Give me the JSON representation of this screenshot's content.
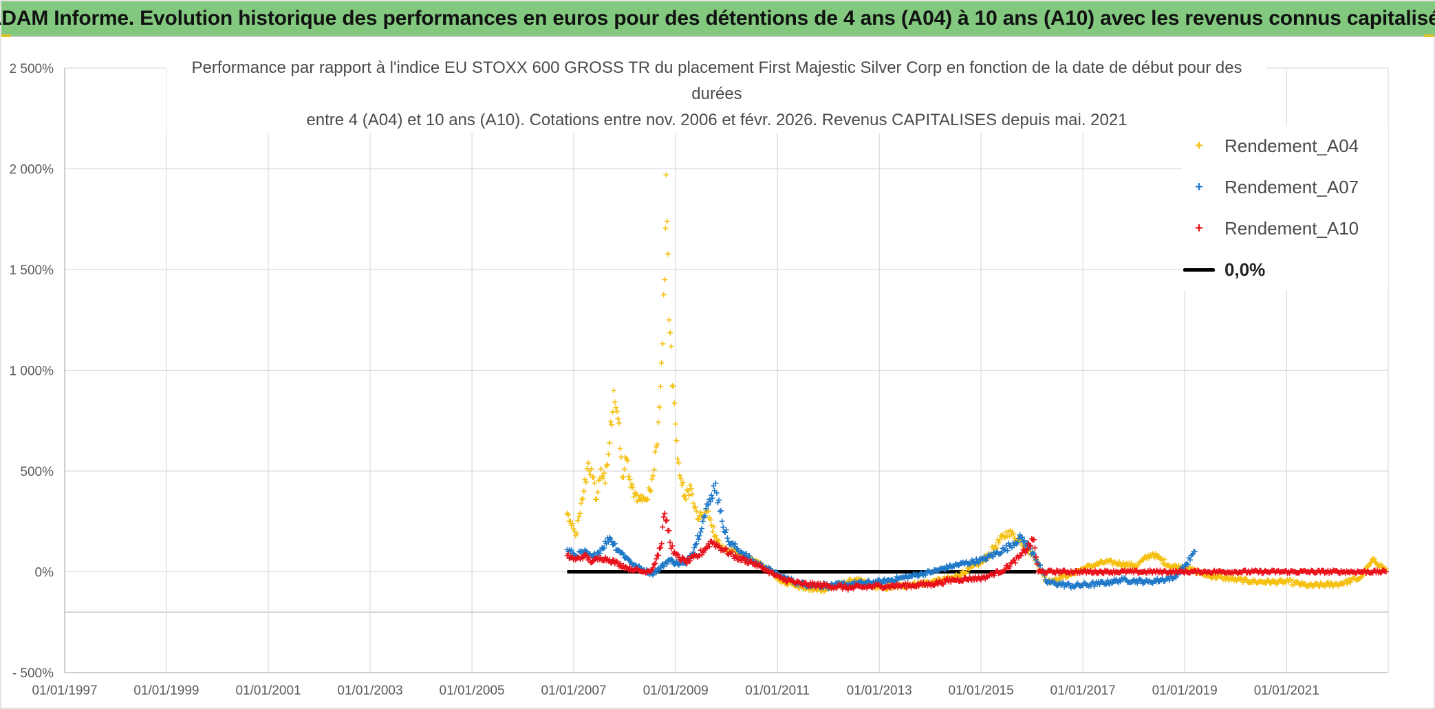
{
  "header": {
    "banner_title": "ADAM Informe. Evolution historique des performances en euros pour des détentions de 4 ans (A04) à 10 ans (A10) avec les revenus connus capitalisés"
  },
  "colors": {
    "banner_bg": "#82c97f",
    "A04": "#f5c010",
    "A07": "#1f78c8",
    "A10": "#e8101a",
    "zero": "#000000"
  },
  "chart_data": {
    "type": "scatter",
    "title_lines": [
      "Performance par rapport à l'indice EU STOXX 600 GROSS TR  du placement First Majestic Silver Corp en fonction de la date de début pour des",
      "durées",
      "entre 4 (A04) et 10 ans (A10). Cotations entre nov. 2006 et févr. 2026. Revenus CAPITALISES depuis mai. 2021"
    ],
    "xlabel": "",
    "ylabel": "",
    "xlim": [
      "01/01/1997",
      "31/12/2022"
    ],
    "ylim": [
      -500,
      2500
    ],
    "x_ticks": [
      "01/01/1997",
      "01/01/1999",
      "01/01/2001",
      "01/01/2003",
      "01/01/2005",
      "01/01/2007",
      "01/01/2009",
      "01/01/2011",
      "01/01/2013",
      "01/01/2015",
      "01/01/2017",
      "01/01/2019",
      "01/01/2021"
    ],
    "y_ticks": [
      {
        "value": 2500,
        "label": "2 500%"
      },
      {
        "value": 2000,
        "label": "2 000%"
      },
      {
        "value": 1500,
        "label": "1 500%"
      },
      {
        "value": 1000,
        "label": "1 000%"
      },
      {
        "value": 500,
        "label": "500%"
      },
      {
        "value": 0,
        "label": "0%"
      },
      {
        "value": -500,
        "label": "- 500%"
      }
    ],
    "grid": true,
    "legend_position": "right",
    "legend": [
      {
        "key": "A04",
        "label": "Rendement_A04",
        "marker": "+"
      },
      {
        "key": "A07",
        "label": "Rendement_A07",
        "marker": "+"
      },
      {
        "key": "A10",
        "label": "Rendement_A10",
        "marker": "+"
      },
      {
        "key": "zero",
        "label": "0,0%",
        "marker": "line"
      }
    ],
    "reference_line": {
      "name": "0,0%",
      "y": 0,
      "x_start": "2006-11-15",
      "x_end": "2016-02-01"
    },
    "series": [
      {
        "name": "Rendement_A04",
        "key": "A04",
        "points": [
          [
            "2006-11-15",
            290
          ],
          [
            "2006-12-15",
            230
          ],
          [
            "2007-01-15",
            180
          ],
          [
            "2007-02-15",
            290
          ],
          [
            "2007-03-15",
            400
          ],
          [
            "2007-04-15",
            540
          ],
          [
            "2007-05-15",
            470
          ],
          [
            "2007-06-15",
            360
          ],
          [
            "2007-07-15",
            510
          ],
          [
            "2007-08-15",
            440
          ],
          [
            "2007-09-15",
            640
          ],
          [
            "2007-10-15",
            900
          ],
          [
            "2007-11-15",
            760
          ],
          [
            "2007-12-15",
            470
          ],
          [
            "2008-01-15",
            560
          ],
          [
            "2008-02-15",
            420
          ],
          [
            "2008-03-15",
            390
          ],
          [
            "2008-04-15",
            360
          ],
          [
            "2008-05-15",
            370
          ],
          [
            "2008-06-15",
            360
          ],
          [
            "2008-07-15",
            460
          ],
          [
            "2008-08-15",
            620
          ],
          [
            "2008-09-15",
            920
          ],
          [
            "2008-10-15",
            1450
          ],
          [
            "2008-10-25",
            1970
          ],
          [
            "2008-11-15",
            1250
          ],
          [
            "2008-12-15",
            920
          ],
          [
            "2009-01-15",
            560
          ],
          [
            "2009-02-15",
            430
          ],
          [
            "2009-03-15",
            360
          ],
          [
            "2009-04-15",
            430
          ],
          [
            "2009-05-15",
            320
          ],
          [
            "2009-06-15",
            260
          ],
          [
            "2009-07-15",
            280
          ],
          [
            "2009-08-15",
            300
          ],
          [
            "2009-09-15",
            230
          ],
          [
            "2009-10-15",
            180
          ],
          [
            "2009-11-15",
            130
          ],
          [
            "2009-12-15",
            110
          ],
          [
            "2010-02-15",
            100
          ],
          [
            "2010-04-15",
            90
          ],
          [
            "2010-06-15",
            60
          ],
          [
            "2010-08-15",
            50
          ],
          [
            "2010-10-15",
            20
          ],
          [
            "2011-01-15",
            -40
          ],
          [
            "2011-04-15",
            -60
          ],
          [
            "2011-07-15",
            -80
          ],
          [
            "2011-10-15",
            -90
          ],
          [
            "2012-01-15",
            -80
          ],
          [
            "2012-04-15",
            -60
          ],
          [
            "2012-07-15",
            -40
          ],
          [
            "2012-10-15",
            -60
          ],
          [
            "2013-01-15",
            -80
          ],
          [
            "2013-06-15",
            -70
          ],
          [
            "2014-01-15",
            -50
          ],
          [
            "2014-06-15",
            -30
          ],
          [
            "2015-01-15",
            50
          ],
          [
            "2015-04-15",
            130
          ],
          [
            "2015-07-15",
            200
          ],
          [
            "2015-10-15",
            150
          ],
          [
            "2016-01-15",
            80
          ],
          [
            "2016-04-15",
            -50
          ],
          [
            "2016-07-15",
            -30
          ],
          [
            "2016-10-15",
            -10
          ],
          [
            "2017-01-15",
            20
          ],
          [
            "2017-06-15",
            50
          ],
          [
            "2018-01-15",
            30
          ],
          [
            "2018-05-15",
            90
          ],
          [
            "2018-09-15",
            30
          ],
          [
            "2019-01-15",
            20
          ],
          [
            "2019-06-15",
            -20
          ],
          [
            "2020-01-15",
            -40
          ],
          [
            "2020-06-15",
            -50
          ],
          [
            "2021-01-15",
            -50
          ],
          [
            "2021-06-15",
            -70
          ],
          [
            "2022-01-15",
            -60
          ],
          [
            "2022-06-15",
            -30
          ],
          [
            "2022-09-15",
            60
          ],
          [
            "2022-12-15",
            10
          ]
        ]
      },
      {
        "name": "Rendement_A07",
        "key": "A07",
        "points": [
          [
            "2006-11-15",
            110
          ],
          [
            "2007-01-15",
            80
          ],
          [
            "2007-03-15",
            100
          ],
          [
            "2007-05-15",
            70
          ],
          [
            "2007-07-15",
            110
          ],
          [
            "2007-09-15",
            170
          ],
          [
            "2007-11-15",
            110
          ],
          [
            "2008-01-15",
            70
          ],
          [
            "2008-03-15",
            30
          ],
          [
            "2008-05-15",
            10
          ],
          [
            "2008-07-15",
            -10
          ],
          [
            "2008-09-15",
            20
          ],
          [
            "2008-11-15",
            60
          ],
          [
            "2009-01-15",
            40
          ],
          [
            "2009-03-15",
            40
          ],
          [
            "2009-05-15",
            120
          ],
          [
            "2009-07-15",
            250
          ],
          [
            "2009-09-15",
            380
          ],
          [
            "2009-10-15",
            440
          ],
          [
            "2009-11-15",
            300
          ],
          [
            "2010-01-15",
            150
          ],
          [
            "2010-04-15",
            100
          ],
          [
            "2010-07-15",
            50
          ],
          [
            "2010-10-15",
            20
          ],
          [
            "2011-01-15",
            -20
          ],
          [
            "2011-06-15",
            -60
          ],
          [
            "2012-01-15",
            -70
          ],
          [
            "2012-06-15",
            -60
          ],
          [
            "2013-01-15",
            -50
          ],
          [
            "2013-06-15",
            -30
          ],
          [
            "2014-01-15",
            0
          ],
          [
            "2014-06-15",
            30
          ],
          [
            "2015-01-15",
            60
          ],
          [
            "2015-06-15",
            110
          ],
          [
            "2015-10-15",
            170
          ],
          [
            "2016-01-15",
            90
          ],
          [
            "2016-04-15",
            -50
          ],
          [
            "2016-10-15",
            -70
          ],
          [
            "2017-04-15",
            -60
          ],
          [
            "2017-10-15",
            -40
          ],
          [
            "2018-04-15",
            -50
          ],
          [
            "2018-10-15",
            -30
          ],
          [
            "2019-01-15",
            40
          ],
          [
            "2019-03-15",
            100
          ]
        ]
      },
      {
        "name": "Rendement_A10",
        "key": "A10",
        "points": [
          [
            "2006-11-15",
            80
          ],
          [
            "2007-01-15",
            60
          ],
          [
            "2007-03-15",
            80
          ],
          [
            "2007-05-15",
            50
          ],
          [
            "2007-07-15",
            70
          ],
          [
            "2007-09-15",
            60
          ],
          [
            "2007-11-15",
            40
          ],
          [
            "2008-01-15",
            20
          ],
          [
            "2008-03-15",
            10
          ],
          [
            "2008-05-15",
            0
          ],
          [
            "2008-07-15",
            10
          ],
          [
            "2008-09-15",
            120
          ],
          [
            "2008-10-15",
            290
          ],
          [
            "2008-12-15",
            90
          ],
          [
            "2009-03-15",
            50
          ],
          [
            "2009-06-15",
            80
          ],
          [
            "2009-09-15",
            150
          ],
          [
            "2009-12-15",
            110
          ],
          [
            "2010-03-15",
            70
          ],
          [
            "2010-06-15",
            50
          ],
          [
            "2010-09-15",
            20
          ],
          [
            "2011-01-15",
            -30
          ],
          [
            "2011-06-15",
            -60
          ],
          [
            "2012-01-15",
            -70
          ],
          [
            "2012-06-15",
            -80
          ],
          [
            "2013-01-15",
            -70
          ],
          [
            "2013-06-15",
            -70
          ],
          [
            "2014-01-15",
            -60
          ],
          [
            "2014-06-15",
            -40
          ],
          [
            "2015-01-15",
            -30
          ],
          [
            "2015-06-15",
            10
          ],
          [
            "2015-10-15",
            80
          ],
          [
            "2016-01-15",
            160
          ],
          [
            "2016-02-15",
            0
          ],
          [
            "2017-06-15",
            0
          ],
          [
            "2019-06-15",
            0
          ],
          [
            "2021-01-15",
            0
          ],
          [
            "2022-12-15",
            0
          ]
        ]
      }
    ]
  }
}
